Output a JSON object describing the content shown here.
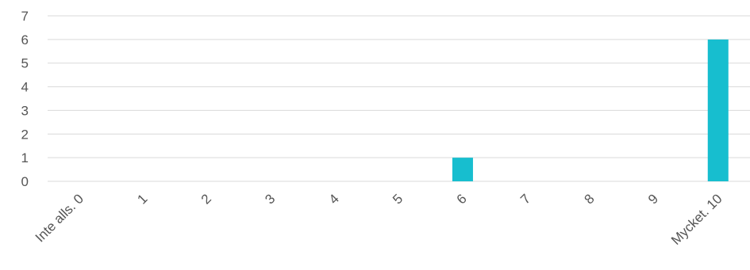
{
  "chart_data": {
    "type": "bar",
    "categories": [
      "Inte alls. 0",
      "1",
      "2",
      "3",
      "4",
      "5",
      "6",
      "7",
      "8",
      "9",
      "Mycket. 10"
    ],
    "values": [
      0,
      0,
      0,
      0,
      0,
      0,
      1,
      0,
      0,
      0,
      6
    ],
    "ylim": [
      0,
      7
    ],
    "yticks": [
      0,
      1,
      2,
      3,
      4,
      5,
      6,
      7
    ],
    "grid": true,
    "colors": {
      "bar": "#17BECF"
    }
  }
}
